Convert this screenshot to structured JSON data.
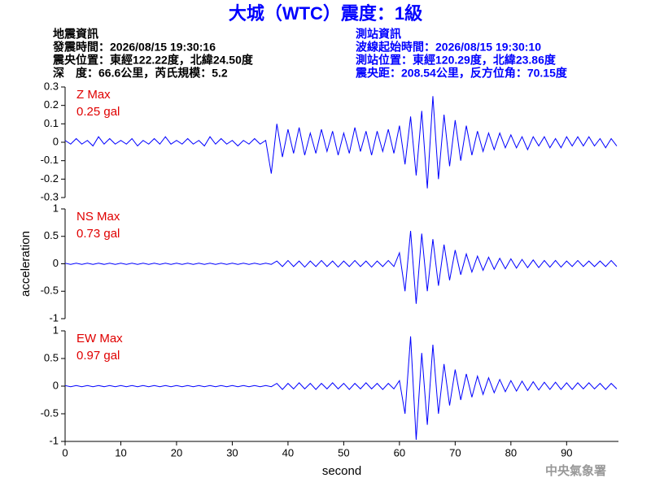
{
  "header": {
    "title": "大城（WTC）震度：1級",
    "left": [
      "地震資訊",
      "發震時間：2026/08/15 19:30:16",
      "震央位置：東經122.22度，北緯24.50度",
      "深　度：66.6公里，芮氏規模：5.2"
    ],
    "right": [
      "測站資訊",
      "波線起始時間：2026/08/15 19:30:10",
      "測站位置：東經120.29度，北緯23.86度",
      "震央距：208.54公里，反方位角：70.15度"
    ]
  },
  "footer": "中央氣象署",
  "chart_data": [
    {
      "type": "line",
      "annotations": [
        "Z Max",
        "0.25 gal"
      ],
      "color": "#0000ff",
      "xlim": [
        0,
        99.3
      ],
      "ylim": [
        -0.3,
        0.3
      ],
      "yticks": [
        0.3,
        0.2,
        0.1,
        0,
        -0.1,
        -0.2,
        -0.3
      ],
      "x": [
        0,
        1,
        2,
        3,
        4,
        5,
        6,
        7,
        8,
        9,
        10,
        11,
        12,
        13,
        14,
        15,
        16,
        17,
        18,
        19,
        20,
        21,
        22,
        23,
        24,
        25,
        26,
        27,
        28,
        29,
        30,
        31,
        32,
        33,
        34,
        35,
        36,
        37,
        38,
        39,
        40,
        41,
        42,
        43,
        44,
        45,
        46,
        47,
        48,
        49,
        50,
        51,
        52,
        53,
        54,
        55,
        56,
        57,
        58,
        59,
        60,
        61,
        62,
        63,
        64,
        65,
        66,
        67,
        68,
        69,
        70,
        71,
        72,
        73,
        74,
        75,
        76,
        77,
        78,
        79,
        80,
        81,
        82,
        83,
        84,
        85,
        86,
        87,
        88,
        89,
        90,
        91,
        92,
        93,
        94,
        95,
        96,
        97,
        98,
        99
      ],
      "values": [
        0.01,
        -0.01,
        0.02,
        -0.01,
        0.01,
        -0.02,
        0.03,
        -0.01,
        0.02,
        -0.01,
        0.01,
        -0.01,
        0.02,
        -0.02,
        0.01,
        -0.01,
        0.02,
        -0.01,
        0.03,
        -0.01,
        0.01,
        -0.01,
        0.02,
        -0.01,
        0.01,
        -0.02,
        0.03,
        -0.01,
        0.02,
        -0.01,
        0.01,
        -0.02,
        0.01,
        -0.01,
        0.02,
        -0.01,
        0.01,
        -0.17,
        0.1,
        -0.08,
        0.07,
        -0.06,
        0.08,
        -0.07,
        0.05,
        -0.06,
        0.07,
        -0.05,
        0.06,
        -0.07,
        0.05,
        -0.06,
        0.08,
        -0.05,
        0.06,
        -0.07,
        0.06,
        -0.05,
        0.07,
        -0.06,
        0.09,
        -0.12,
        0.14,
        -0.18,
        0.17,
        -0.25,
        0.25,
        -0.2,
        0.15,
        -0.13,
        0.12,
        -0.1,
        0.09,
        -0.07,
        0.06,
        -0.05,
        0.05,
        -0.04,
        0.05,
        -0.03,
        0.04,
        -0.03,
        0.03,
        -0.04,
        0.03,
        -0.02,
        0.03,
        -0.03,
        0.02,
        -0.03,
        0.03,
        -0.02,
        0.03,
        -0.02,
        0.03,
        -0.02,
        0.02,
        -0.03,
        0.02,
        -0.02
      ]
    },
    {
      "type": "line",
      "annotations": [
        "NS Max",
        "0.73 gal"
      ],
      "color": "#0000ff",
      "ylabel": "acceleration",
      "xlim": [
        0,
        99.3
      ],
      "ylim": [
        -1,
        1
      ],
      "yticks": [
        1,
        0.5,
        0,
        -0.5,
        -1
      ],
      "x": [
        0,
        1,
        2,
        3,
        4,
        5,
        6,
        7,
        8,
        9,
        10,
        11,
        12,
        13,
        14,
        15,
        16,
        17,
        18,
        19,
        20,
        21,
        22,
        23,
        24,
        25,
        26,
        27,
        28,
        29,
        30,
        31,
        32,
        33,
        34,
        35,
        36,
        37,
        38,
        39,
        40,
        41,
        42,
        43,
        44,
        45,
        46,
        47,
        48,
        49,
        50,
        51,
        52,
        53,
        54,
        55,
        56,
        57,
        58,
        59,
        60,
        61,
        62,
        63,
        64,
        65,
        66,
        67,
        68,
        69,
        70,
        71,
        72,
        73,
        74,
        75,
        76,
        77,
        78,
        79,
        80,
        81,
        82,
        83,
        84,
        85,
        86,
        87,
        88,
        89,
        90,
        91,
        92,
        93,
        94,
        95,
        96,
        97,
        98,
        99
      ],
      "values": [
        0.01,
        -0.01,
        0.01,
        -0.01,
        0.01,
        -0.01,
        0.01,
        -0.01,
        0.01,
        -0.01,
        0.01,
        -0.01,
        0.01,
        -0.01,
        0.01,
        -0.01,
        0.01,
        -0.01,
        0.01,
        -0.01,
        0.01,
        -0.01,
        0.01,
        -0.01,
        0.01,
        -0.01,
        0.01,
        -0.01,
        0.01,
        -0.01,
        0.01,
        -0.01,
        0.01,
        -0.01,
        0.01,
        -0.01,
        0.01,
        -0.01,
        0.05,
        -0.05,
        0.06,
        -0.05,
        0.05,
        -0.06,
        0.05,
        -0.05,
        0.06,
        -0.05,
        0.05,
        -0.06,
        0.05,
        -0.05,
        0.06,
        -0.05,
        0.05,
        -0.06,
        0.05,
        -0.05,
        0.06,
        -0.05,
        0.2,
        -0.5,
        0.6,
        -0.73,
        0.55,
        -0.5,
        0.45,
        -0.4,
        0.35,
        -0.3,
        0.25,
        -0.2,
        0.18,
        -0.15,
        0.14,
        -0.12,
        0.12,
        -0.1,
        0.1,
        -0.09,
        0.09,
        -0.08,
        0.08,
        -0.07,
        0.07,
        -0.07,
        0.06,
        -0.06,
        0.06,
        -0.06,
        0.05,
        -0.05,
        0.06,
        -0.05,
        0.05,
        -0.05,
        0.05,
        -0.05,
        0.06,
        -0.05
      ]
    },
    {
      "type": "line",
      "annotations": [
        "EW Max",
        "0.97 gal"
      ],
      "color": "#0000ff",
      "xlabel": "second",
      "xlim": [
        0,
        99.3
      ],
      "xticks": [
        0,
        10,
        20,
        30,
        40,
        50,
        60,
        70,
        80,
        90
      ],
      "ylim": [
        -1,
        1
      ],
      "yticks": [
        1,
        0.5,
        0,
        -0.5,
        -1
      ],
      "x": [
        0,
        1,
        2,
        3,
        4,
        5,
        6,
        7,
        8,
        9,
        10,
        11,
        12,
        13,
        14,
        15,
        16,
        17,
        18,
        19,
        20,
        21,
        22,
        23,
        24,
        25,
        26,
        27,
        28,
        29,
        30,
        31,
        32,
        33,
        34,
        35,
        36,
        37,
        38,
        39,
        40,
        41,
        42,
        43,
        44,
        45,
        46,
        47,
        48,
        49,
        50,
        51,
        52,
        53,
        54,
        55,
        56,
        57,
        58,
        59,
        60,
        61,
        62,
        63,
        64,
        65,
        66,
        67,
        68,
        69,
        70,
        71,
        72,
        73,
        74,
        75,
        76,
        77,
        78,
        79,
        80,
        81,
        82,
        83,
        84,
        85,
        86,
        87,
        88,
        89,
        90,
        91,
        92,
        93,
        94,
        95,
        96,
        97,
        98,
        99
      ],
      "values": [
        0.01,
        -0.01,
        0.01,
        -0.01,
        0.01,
        -0.01,
        0.01,
        -0.01,
        0.01,
        -0.01,
        0.01,
        -0.01,
        0.01,
        -0.01,
        0.01,
        -0.01,
        0.01,
        -0.01,
        0.01,
        -0.01,
        0.01,
        -0.01,
        0.01,
        -0.01,
        0.01,
        -0.01,
        0.01,
        -0.01,
        0.01,
        -0.01,
        0.01,
        -0.01,
        0.01,
        -0.01,
        0.01,
        -0.01,
        0.01,
        -0.01,
        0.05,
        -0.06,
        0.05,
        -0.05,
        0.06,
        -0.05,
        0.05,
        -0.06,
        0.05,
        -0.05,
        0.06,
        -0.05,
        0.05,
        -0.06,
        0.05,
        -0.05,
        0.06,
        -0.05,
        0.05,
        -0.06,
        0.05,
        -0.05,
        0.1,
        -0.5,
        0.9,
        -0.97,
        0.6,
        -0.7,
        0.75,
        -0.5,
        0.4,
        -0.35,
        0.3,
        -0.25,
        0.22,
        -0.2,
        0.18,
        -0.15,
        0.15,
        -0.12,
        0.12,
        -0.1,
        0.1,
        -0.09,
        0.09,
        -0.08,
        0.08,
        -0.07,
        0.07,
        -0.06,
        0.07,
        -0.06,
        0.06,
        -0.06,
        0.06,
        -0.05,
        0.06,
        -0.05,
        0.05,
        -0.06,
        0.05,
        -0.05
      ]
    }
  ]
}
